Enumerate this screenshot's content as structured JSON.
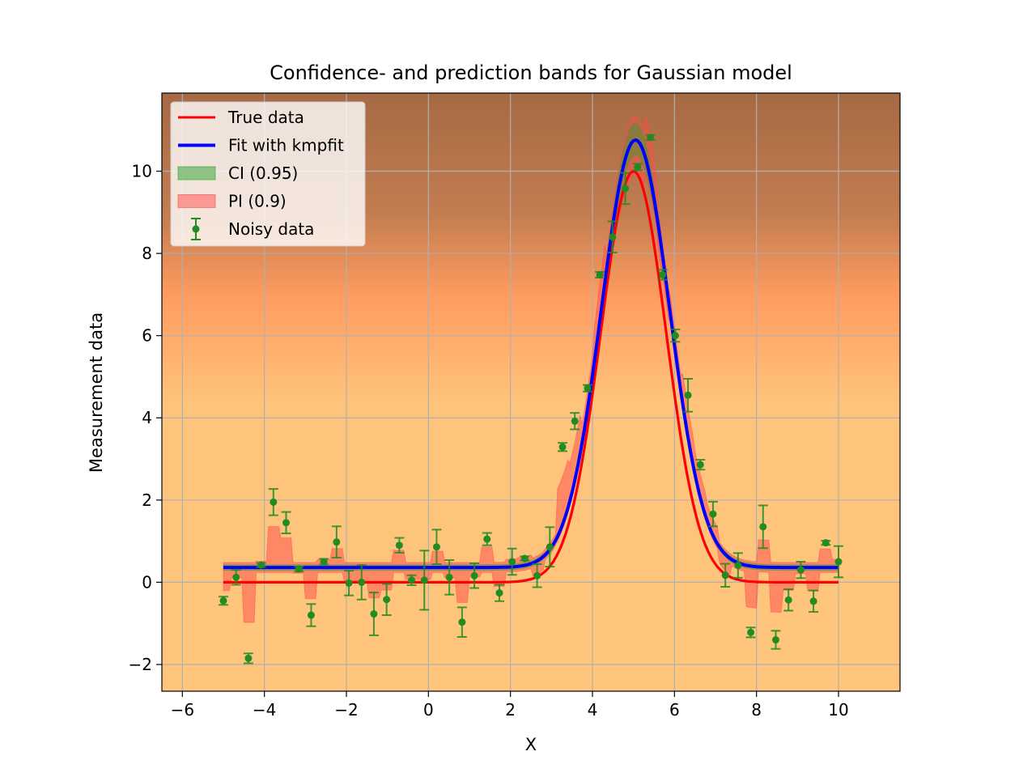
{
  "chart_data": {
    "type": "scatter",
    "title": "Confidence- and prediction bands for Gaussian model",
    "xlabel": "X",
    "ylabel": "Measurement data",
    "xlim": [
      -6.5,
      11.5
    ],
    "ylim": [
      -2.65,
      11.9
    ],
    "xticks": [
      -6,
      -4,
      -2,
      0,
      2,
      4,
      6,
      8,
      10
    ],
    "xtick_labels": [
      "−6",
      "−4",
      "−2",
      "0",
      "2",
      "4",
      "6",
      "8",
      "10"
    ],
    "yticks": [
      -2,
      0,
      2,
      4,
      6,
      8,
      10
    ],
    "ytick_labels": [
      "−2",
      "0",
      "2",
      "4",
      "6",
      "8",
      "10"
    ],
    "grid": true,
    "legend_position": "top-left",
    "background": "vertical gradient: brown at top through orange to light orange at bottom",
    "colors": {
      "true_data": "#ff0000",
      "fit": "#0000ff",
      "ci": "#2ca02c",
      "pi": "#ff4b4b",
      "noisy": "#228b22"
    },
    "legend": [
      {
        "label": "True data",
        "kind": "line",
        "color": "#ff0000"
      },
      {
        "label": "Fit with kmpfit",
        "kind": "line",
        "color": "#0000ff"
      },
      {
        "label": "CI (0.95)",
        "kind": "patch",
        "color": "#2ca02c"
      },
      {
        "label": "PI (0.9)",
        "kind": "patch",
        "color": "#ff4b4b"
      },
      {
        "label": "Noisy data",
        "kind": "errorbar",
        "color": "#228b22"
      }
    ],
    "model": {
      "true": {
        "amplitude": 10.0,
        "center": 5.0,
        "sigma": 0.8,
        "offset": 0.0
      },
      "fit": {
        "amplitude": 10.4,
        "center": 5.05,
        "sigma": 0.83,
        "offset": 0.36
      },
      "x_range": [
        -5.0,
        10.0
      ]
    },
    "series": [
      {
        "name": "Noisy data",
        "x": [
          -5.0,
          -4.69,
          -4.39,
          -4.08,
          -3.78,
          -3.47,
          -3.16,
          -2.86,
          -2.55,
          -2.24,
          -1.94,
          -1.63,
          -1.33,
          -1.02,
          -0.71,
          -0.41,
          -0.1,
          0.2,
          0.51,
          0.82,
          1.12,
          1.43,
          1.73,
          2.04,
          2.35,
          2.65,
          2.96,
          3.27,
          3.57,
          3.88,
          4.18,
          4.49,
          4.8,
          5.1,
          5.41,
          5.71,
          6.02,
          6.33,
          6.63,
          6.94,
          7.24,
          7.55,
          7.86,
          8.16,
          8.47,
          8.78,
          9.08,
          9.39,
          9.69,
          10.0
        ],
        "y": [
          -0.45,
          0.12,
          -1.85,
          0.42,
          1.95,
          1.45,
          0.32,
          -0.8,
          0.5,
          0.98,
          -0.02,
          0.0,
          -0.77,
          -0.42,
          0.9,
          0.05,
          0.05,
          0.86,
          0.12,
          -0.97,
          0.16,
          1.05,
          -0.26,
          0.5,
          0.58,
          0.16,
          0.86,
          3.29,
          3.92,
          4.72,
          7.48,
          8.4,
          9.58,
          10.1,
          10.82,
          7.48,
          6.0,
          4.55,
          2.86,
          1.66,
          0.17,
          0.41,
          -1.22,
          1.35,
          -1.4,
          -0.43,
          0.3,
          -0.46,
          0.96,
          0.5
        ],
        "yerr": [
          0.1,
          0.18,
          0.12,
          0.05,
          0.32,
          0.26,
          0.06,
          0.27,
          0.07,
          0.38,
          0.3,
          0.42,
          0.52,
          0.38,
          0.18,
          0.12,
          0.72,
          0.42,
          0.42,
          0.36,
          0.3,
          0.15,
          0.2,
          0.32,
          0.05,
          0.28,
          0.48,
          0.1,
          0.2,
          0.08,
          0.07,
          0.38,
          0.38,
          0.08,
          0.06,
          0.12,
          0.15,
          0.4,
          0.12,
          0.3,
          0.28,
          0.3,
          0.12,
          0.52,
          0.22,
          0.26,
          0.2,
          0.26,
          0.05,
          0.38
        ]
      }
    ]
  }
}
